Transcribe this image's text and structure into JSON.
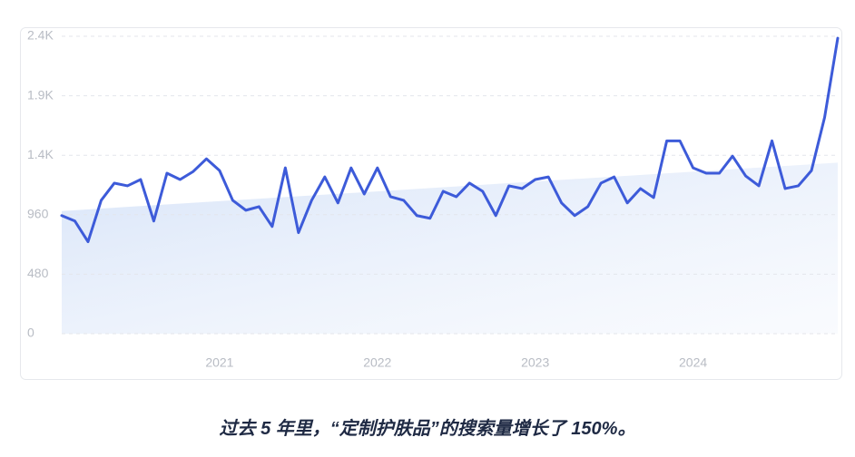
{
  "chart_data": {
    "type": "line",
    "categories": [
      null,
      null,
      null,
      null,
      null,
      null,
      null,
      null,
      null,
      null,
      null,
      null,
      "2021",
      null,
      null,
      null,
      null,
      null,
      null,
      null,
      null,
      null,
      null,
      null,
      "2022",
      null,
      null,
      null,
      null,
      null,
      null,
      null,
      null,
      null,
      null,
      null,
      "2023",
      null,
      null,
      null,
      null,
      null,
      null,
      null,
      null,
      null,
      null,
      null,
      "2024",
      null,
      null,
      null,
      null,
      null,
      null,
      null,
      null,
      null,
      null,
      null
    ],
    "series": [
      {
        "color": "#3d5bd9",
        "values": [
          953,
          909,
          742,
          1076,
          1215,
          1193,
          1244,
          909,
          1295,
          1244,
          1309,
          1411,
          1316,
          1076,
          996,
          1025,
          865,
          1338,
          815,
          1076,
          1265,
          1055,
          1338,
          1127,
          1338,
          1105,
          1076,
          953,
          931,
          1149,
          1105,
          1215,
          1149,
          953,
          1193,
          1171,
          1244,
          1265,
          1055,
          953,
          1025,
          1215,
          1265,
          1055,
          1171,
          1098,
          1556,
          1556,
          1338,
          1295,
          1295,
          1433,
          1273,
          1193,
          1556,
          1171,
          1193,
          1316,
          1745,
          2385
        ]
      }
    ],
    "trend": [
      990,
      1380
    ],
    "ylim": [
      0,
      2400
    ],
    "yticks": [
      0,
      480,
      960,
      {
        "value": 1440,
        "label": "1.4K"
      },
      {
        "value": 1920,
        "label": "1.9K"
      },
      {
        "value": 2400,
        "label": "2.4K"
      }
    ],
    "grid": true
  },
  "caption": "过去 5 年里，“定制护肤品”的搜索量增长了 150%。"
}
